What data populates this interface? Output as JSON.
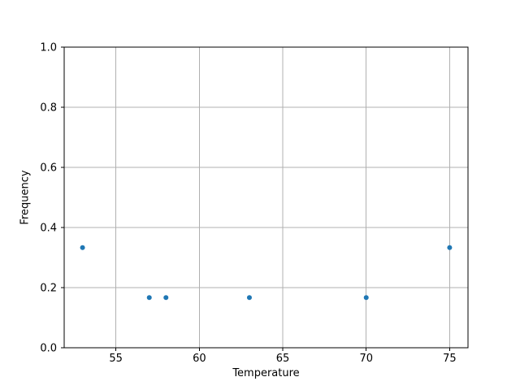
{
  "chart_data": {
    "type": "scatter",
    "title": "",
    "xlabel": "Temperature",
    "ylabel": "Frequency",
    "x": [
      53,
      57,
      58,
      63,
      70,
      75
    ],
    "y": [
      0.333,
      0.167,
      0.167,
      0.167,
      0.167,
      0.333
    ],
    "xlim": [
      51.9,
      76.1
    ],
    "ylim": [
      0.0,
      1.0
    ],
    "xticks": [
      55,
      60,
      65,
      70,
      75
    ],
    "yticks": [
      0.0,
      0.2,
      0.4,
      0.6,
      0.8,
      1.0
    ],
    "xtick_labels": [
      "55",
      "60",
      "65",
      "70",
      "75"
    ],
    "ytick_labels": [
      "0.0",
      "0.2",
      "0.4",
      "0.6",
      "0.8",
      "1.0"
    ],
    "grid": true,
    "legend": null,
    "marker_color": "#1f77b4",
    "grid_color": "#b0b0b0",
    "axis_color": "#000000",
    "background_color": "#ffffff"
  }
}
